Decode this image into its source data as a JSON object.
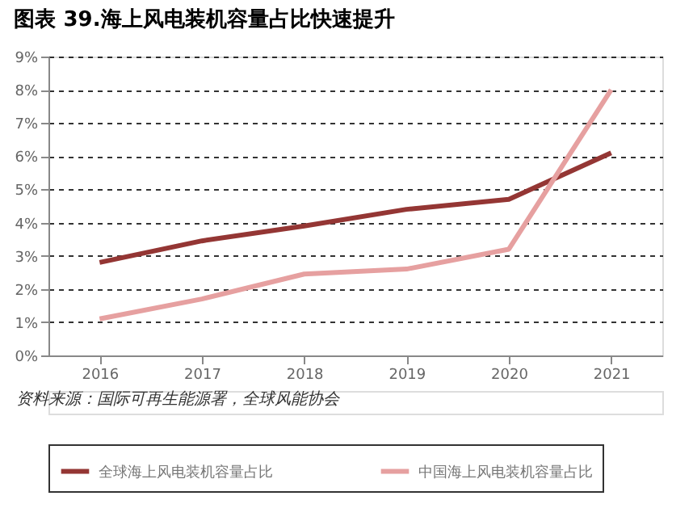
{
  "chart_data": {
    "type": "line",
    "title": "图表 39.海上风电装机容量占比快速提升",
    "categories": [
      "2016",
      "2017",
      "2018",
      "2019",
      "2020",
      "2021"
    ],
    "series": [
      {
        "name": "全球海上风电装机容量占比",
        "color": "#943634",
        "values": [
          2.8,
          3.45,
          3.9,
          4.4,
          4.7,
          6.1
        ]
      },
      {
        "name": "中国海上风电装机容量占比",
        "color": "#e6a0a0",
        "values": [
          1.1,
          1.7,
          2.45,
          2.6,
          3.2,
          8.0
        ]
      }
    ],
    "ylim": [
      0,
      9
    ],
    "yticks": [
      {
        "value": 0,
        "label": "0%"
      },
      {
        "value": 1,
        "label": "1%"
      },
      {
        "value": 2,
        "label": "2%"
      },
      {
        "value": 3,
        "label": "3%"
      },
      {
        "value": 4,
        "label": "4%"
      },
      {
        "value": 5,
        "label": "5%"
      },
      {
        "value": 6,
        "label": "6%"
      },
      {
        "value": 7,
        "label": "7%"
      },
      {
        "value": 8,
        "label": "8%"
      },
      {
        "value": 9,
        "label": "9%"
      }
    ],
    "grid": "y",
    "legend": "bottom",
    "line_style": "solid",
    "marker": "none",
    "annotations": [
      "资料来源：国际可再生能源署，全球风能协会"
    ]
  }
}
